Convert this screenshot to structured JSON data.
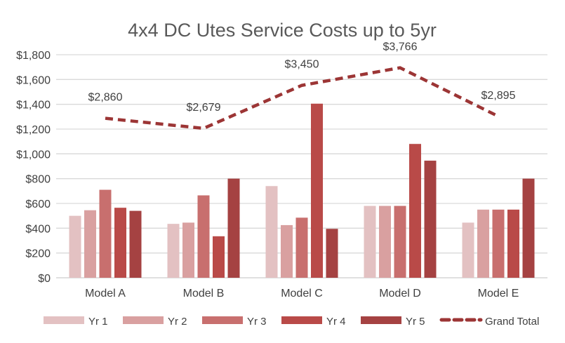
{
  "chart_data": {
    "type": "bar",
    "title": "4x4 DC Utes Service Costs up to 5yr",
    "xlabel": "",
    "ylabel": "",
    "ylim": [
      0,
      1800
    ],
    "y_ticks": [
      "$0",
      "$200",
      "$400",
      "$600",
      "$800",
      "$1,000",
      "$1,200",
      "$1,400",
      "$1,600",
      "$1,800"
    ],
    "grid": true,
    "legend_position": "bottom",
    "categories": [
      "Model A",
      "Model B",
      "Model C",
      "Model D",
      "Model E"
    ],
    "series": [
      {
        "name": "Yr 1",
        "type": "bar",
        "color": "#e3c1c2",
        "values": [
          500,
          435,
          740,
          580,
          445
        ]
      },
      {
        "name": "Yr 2",
        "type": "bar",
        "color": "#d9a0a0",
        "values": [
          545,
          445,
          425,
          580,
          550
        ]
      },
      {
        "name": "Yr 3",
        "type": "bar",
        "color": "#c86f6e",
        "values": [
          710,
          665,
          485,
          580,
          550
        ]
      },
      {
        "name": "Yr 4",
        "type": "bar",
        "color": "#b94a48",
        "values": [
          565,
          335,
          1405,
          1080,
          550
        ]
      },
      {
        "name": "Yr 5",
        "type": "bar",
        "color": "#a54242",
        "values": [
          540,
          800,
          395,
          945,
          800
        ]
      },
      {
        "name": "Grand Total",
        "type": "line",
        "style": "dashed",
        "color": "#9c3535",
        "secondary_axis": true,
        "secondary_ylim": [
          0,
          4000
        ],
        "values": [
          2860,
          2679,
          3450,
          3766,
          2895
        ],
        "labels": [
          "$2,860",
          "$2,679",
          "$3,450",
          "$3,766",
          "$2,895"
        ]
      }
    ]
  }
}
